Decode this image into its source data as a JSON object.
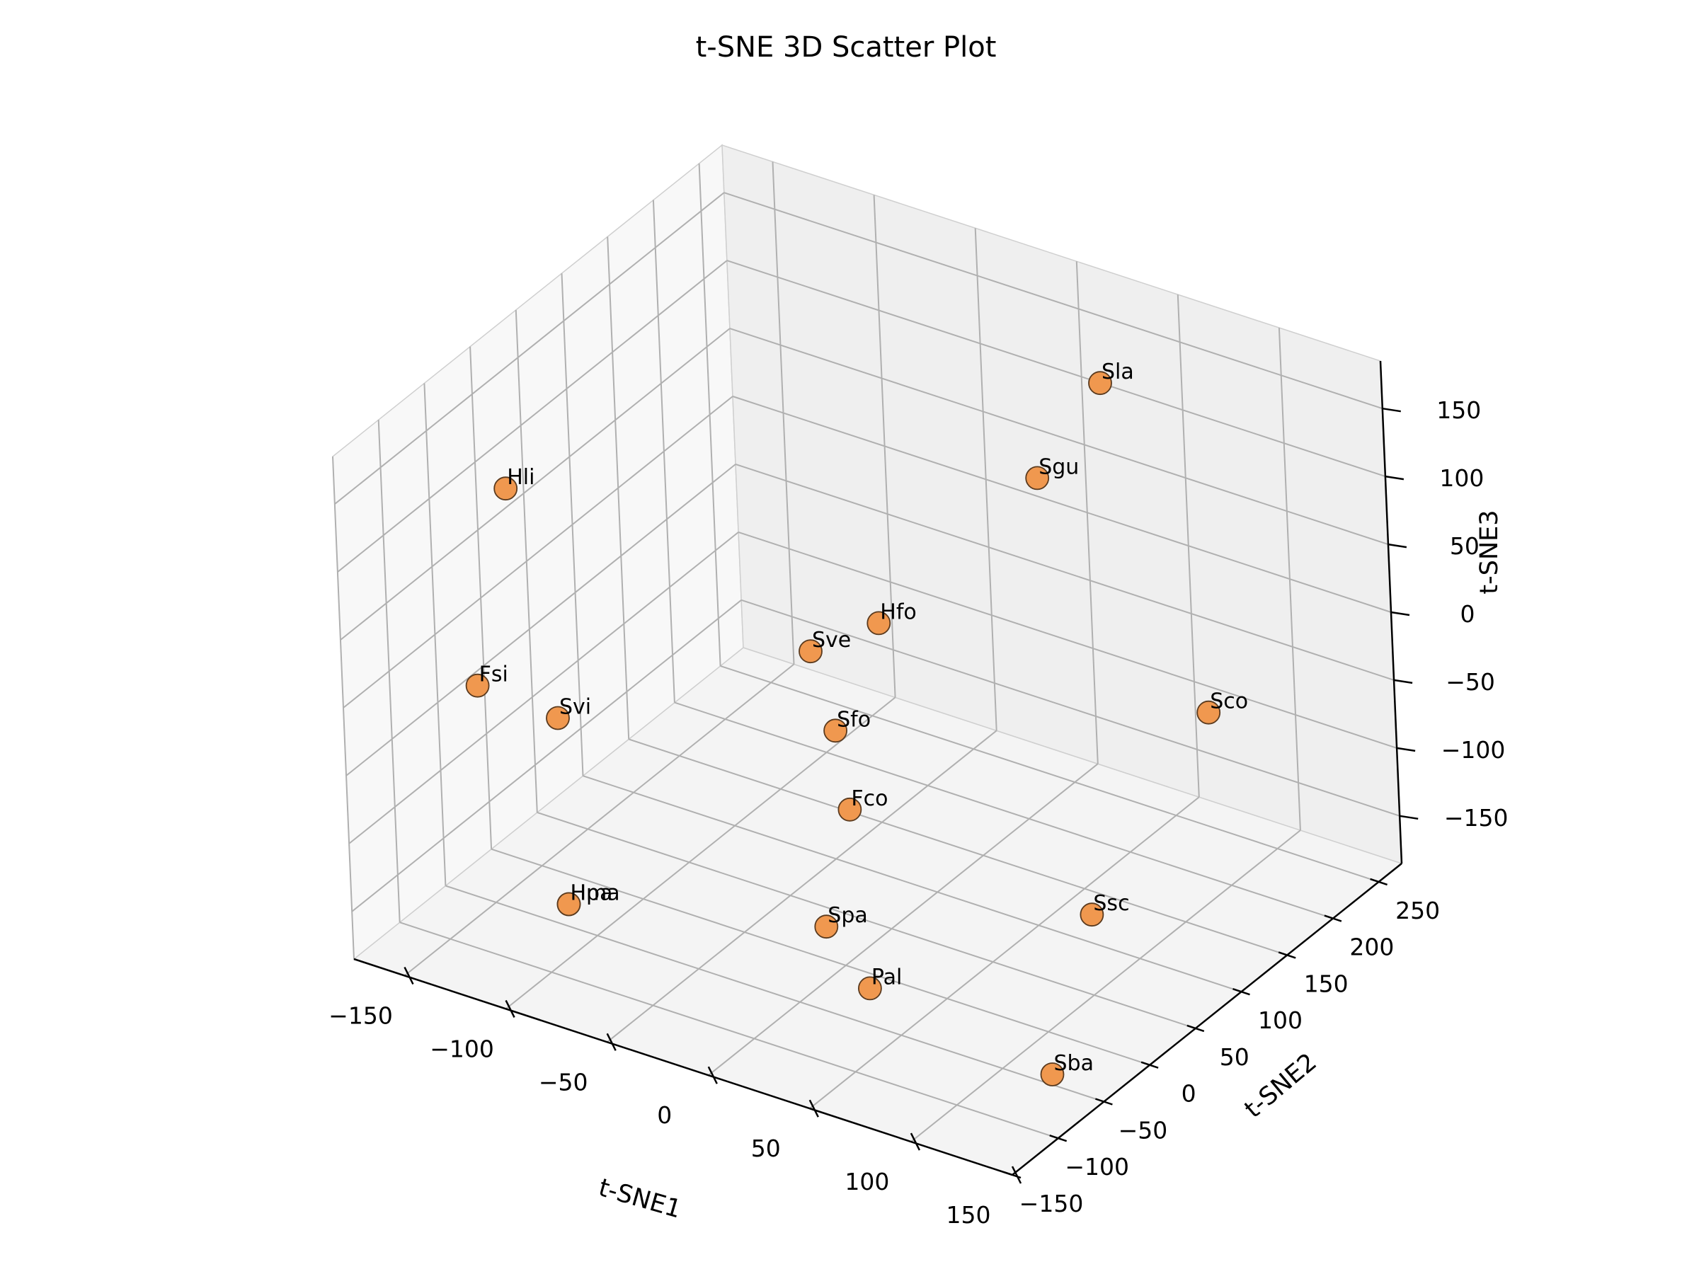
{
  "chart_data": {
    "type": "scatter",
    "title": "t-SNE 3D Scatter Plot",
    "xlabel": "t-SNE1",
    "ylabel": "t-SNE2",
    "zlabel": "t-SNE3",
    "xlim": [
      -175,
      150
    ],
    "ylim": [
      -150,
      275
    ],
    "zlim": [
      -185,
      185
    ],
    "xticks": [
      -150,
      -100,
      -50,
      0,
      50,
      100,
      150
    ],
    "yticks": [
      -150,
      -100,
      -50,
      0,
      50,
      100,
      150,
      200,
      250
    ],
    "zticks": [
      -150,
      -100,
      -50,
      0,
      50,
      100,
      150
    ],
    "xtick_labels": [
      "−150",
      "−100",
      "−50",
      "0",
      "50",
      "100",
      "150"
    ],
    "ytick_labels": [
      "−150",
      "−100",
      "−50",
      "0",
      "50",
      "100",
      "150",
      "200",
      "250"
    ],
    "ztick_labels": [
      "−150",
      "−100",
      "−50",
      "0",
      "50",
      "100",
      "150"
    ],
    "grid": true,
    "marker_color": "#f0984f",
    "marker_edge": "#5a3a1e",
    "points": [
      {
        "label": "Sla",
        "x": 40,
        "y": 210,
        "z": 150
      },
      {
        "label": "Sgu",
        "x": 35,
        "y": 150,
        "z": 110
      },
      {
        "label": "Hli",
        "x": -165,
        "y": 10,
        "z": 80
      },
      {
        "label": "Hfo",
        "x": 0,
        "y": 50,
        "z": 40
      },
      {
        "label": "Sve",
        "x": -30,
        "y": 40,
        "z": 10
      },
      {
        "label": "Sco",
        "x": 130,
        "y": 120,
        "z": 0
      },
      {
        "label": "Sfo",
        "x": -5,
        "y": 10,
        "z": -20
      },
      {
        "label": "Fsi",
        "x": -150,
        "y": -60,
        "z": -20
      },
      {
        "label": "Svi",
        "x": -120,
        "y": -40,
        "z": -40
      },
      {
        "label": "Fco",
        "x": 10,
        "y": -10,
        "z": -60
      },
      {
        "label": "Ssc",
        "x": 110,
        "y": 30,
        "z": -110
      },
      {
        "label": "Spa",
        "x": 10,
        "y": -40,
        "z": -130
      },
      {
        "label": "Hma",
        "x": -90,
        "y": -100,
        "z": -130
      },
      {
        "label": "Hpa",
        "x": -90,
        "y": -100,
        "z": -130
      },
      {
        "label": "Pal",
        "x": 40,
        "y": -60,
        "z": -150
      },
      {
        "label": "Sba",
        "x": 120,
        "y": -40,
        "z": -185
      }
    ]
  }
}
